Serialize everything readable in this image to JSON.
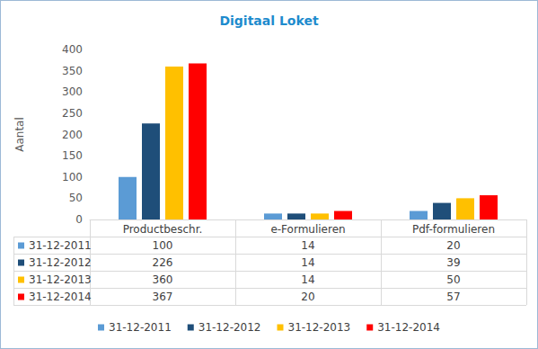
{
  "chart_data": {
    "type": "bar",
    "title": "Digitaal Loket",
    "y_label": "Aantal",
    "categories": [
      "Productbeschr.",
      "e-Formulieren",
      "Pdf-formulieren"
    ],
    "series": [
      {
        "name": "31-12-2011",
        "color": "#5B9BD5",
        "values": [
          100,
          14,
          20
        ]
      },
      {
        "name": "31-12-2012",
        "color": "#1F4E79",
        "values": [
          226,
          14,
          39
        ]
      },
      {
        "name": "31-12-2013",
        "color": "#FFC000",
        "values": [
          360,
          14,
          50
        ]
      },
      {
        "name": "31-12-2014",
        "color": "#FF0000",
        "values": [
          367,
          20,
          57
        ]
      }
    ],
    "ylim": [
      0,
      400
    ],
    "yticks": [
      0,
      50,
      100,
      150,
      200,
      250,
      300,
      350,
      400
    ],
    "grid": false,
    "legend": "bottom",
    "data_labels": false
  }
}
